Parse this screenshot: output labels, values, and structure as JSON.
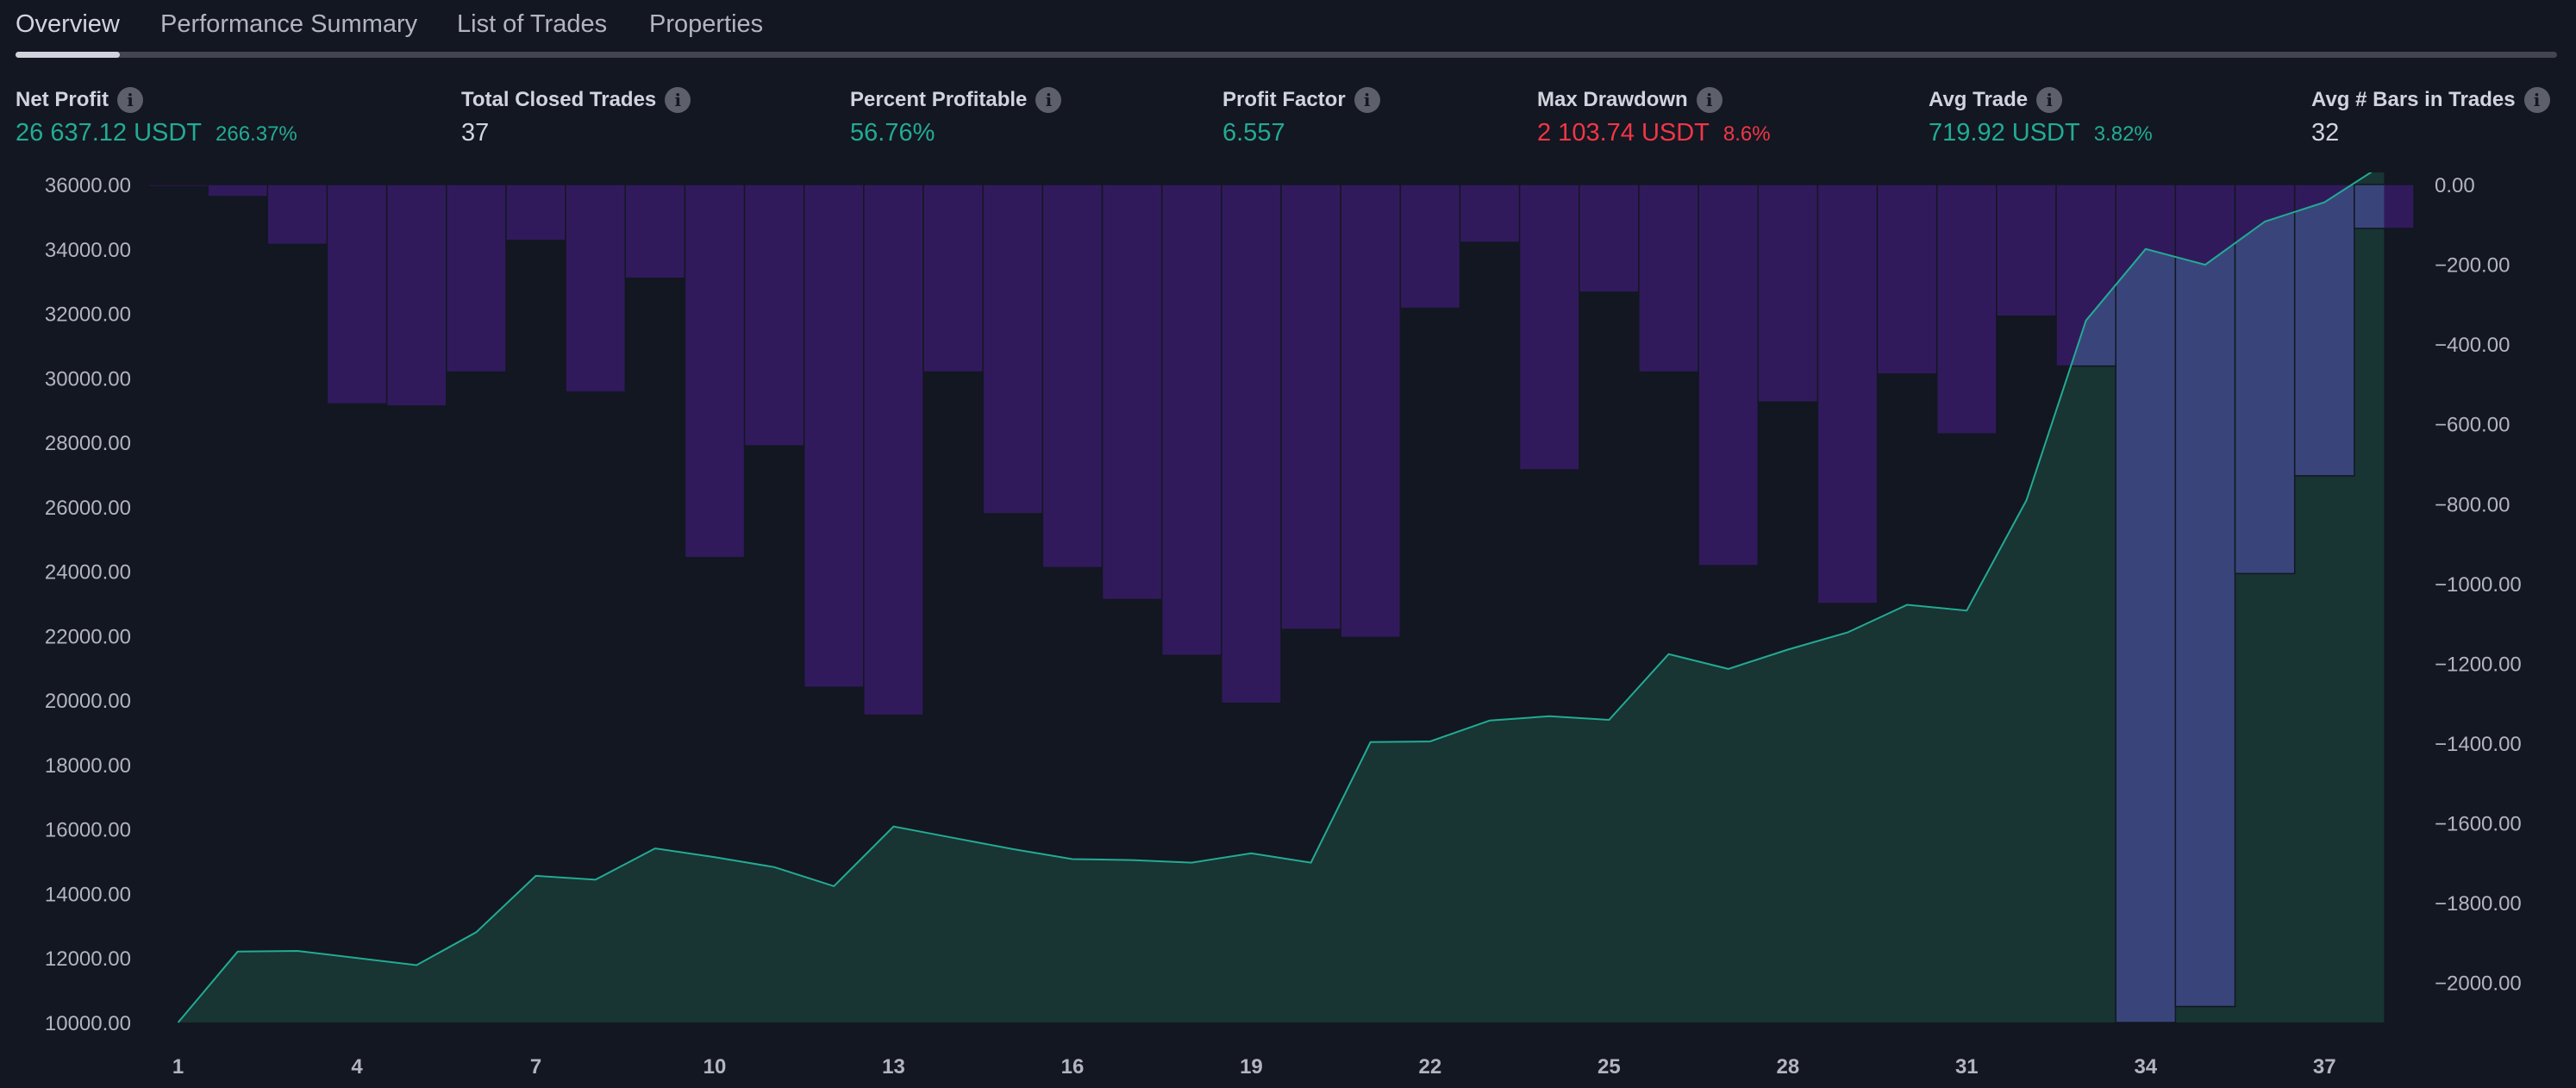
{
  "tabs": [
    {
      "label": "Overview",
      "active": true
    },
    {
      "label": "Performance Summary",
      "active": false
    },
    {
      "label": "List of Trades",
      "active": false
    },
    {
      "label": "Properties",
      "active": false
    }
  ],
  "metrics": {
    "net_profit": {
      "title": "Net Profit",
      "value": "26 637.12 USDT",
      "sub": "266.37%"
    },
    "total_closed_trades": {
      "title": "Total Closed Trades",
      "value": "37"
    },
    "percent_profitable": {
      "title": "Percent Profitable",
      "value": "56.76%"
    },
    "profit_factor": {
      "title": "Profit Factor",
      "value": "6.557"
    },
    "max_drawdown": {
      "title": "Max Drawdown",
      "value": "2 103.74 USDT",
      "sub": "8.6%"
    },
    "avg_trade": {
      "title": "Avg Trade",
      "value": "719.92 USDT",
      "sub": "3.82%"
    },
    "avg_bars": {
      "title": "Avg # Bars in Trades",
      "value": "32"
    }
  },
  "info_icon_glyph": "i",
  "colors": {
    "background": "#131722",
    "equity_line": "#22ab94",
    "equity_fill": "#1a3a36",
    "drawdown_bar": "#311a5c",
    "drawdown_bar_overlap": "#39457a",
    "positive": "#22ab94",
    "negative": "#f23645"
  },
  "chart_data": {
    "type": "area",
    "x_ticks": [
      1,
      4,
      7,
      10,
      13,
      16,
      19,
      22,
      25,
      28,
      31,
      34,
      37
    ],
    "x_tick_labels": [
      "1",
      "4",
      "7",
      "10",
      "13",
      "16",
      "19",
      "22",
      "25",
      "28",
      "31",
      "34",
      "37"
    ],
    "left_axis": {
      "ylim": [
        10000,
        36000
      ],
      "ticks": [
        "36000.00",
        "34000.00",
        "32000.00",
        "30000.00",
        "28000.00",
        "26000.00",
        "24000.00",
        "22000.00",
        "20000.00",
        "18000.00",
        "16000.00",
        "14000.00",
        "12000.00",
        "10000.00"
      ],
      "tick_values": [
        36000,
        34000,
        32000,
        30000,
        28000,
        26000,
        24000,
        22000,
        20000,
        18000,
        16000,
        14000,
        12000,
        10000
      ]
    },
    "right_axis": {
      "ylim": [
        -2100,
        0
      ],
      "ticks": [
        "0.00",
        "−200.00",
        "−400.00",
        "−600.00",
        "−800.00",
        "−1000.00",
        "−1200.00",
        "−1400.00",
        "−1600.00",
        "−1800.00",
        "−2000.00"
      ],
      "tick_values": [
        0,
        -200,
        -400,
        -600,
        -800,
        -1000,
        -1200,
        -1400,
        -1600,
        -1800,
        -2000
      ]
    },
    "equity": {
      "x": [
        1,
        2,
        3,
        4,
        5,
        6,
        7,
        8,
        9,
        10,
        11,
        12,
        13,
        14,
        15,
        16,
        17,
        18,
        19,
        20,
        21,
        22,
        23,
        24,
        25,
        26,
        27,
        28,
        29,
        30,
        31,
        32,
        33,
        34,
        35,
        36,
        37,
        38
      ],
      "y": [
        10000,
        12200,
        12220,
        12000,
        11780,
        12800,
        14550,
        14430,
        15400,
        15130,
        14820,
        14230,
        16080,
        15730,
        15380,
        15070,
        15040,
        14960,
        15250,
        14960,
        18700,
        18720,
        19370,
        19500,
        19390,
        21430,
        20970,
        21570,
        22100,
        22960,
        22780,
        26200,
        31780,
        34000,
        33510,
        34850,
        35450,
        36640
      ]
    },
    "drawdown": {
      "x": [
        1,
        2,
        3,
        4,
        5,
        6,
        7,
        8,
        9,
        10,
        11,
        12,
        13,
        14,
        15,
        16,
        17,
        18,
        19,
        20,
        21,
        22,
        23,
        24,
        25,
        26,
        27,
        28,
        29,
        30,
        31,
        32,
        33,
        34,
        35,
        36,
        37,
        38
      ],
      "y": [
        -5,
        -30,
        -150,
        -550,
        -555,
        -470,
        -140,
        -520,
        -235,
        -935,
        -655,
        -1260,
        -1330,
        -470,
        -825,
        -960,
        -1040,
        -1180,
        -1300,
        -1115,
        -1135,
        -310,
        -145,
        -715,
        -270,
        -470,
        -955,
        -545,
        -1050,
        -475,
        -625,
        -330,
        -455,
        -2100,
        -2060,
        -975,
        -730,
        -110
      ]
    }
  }
}
